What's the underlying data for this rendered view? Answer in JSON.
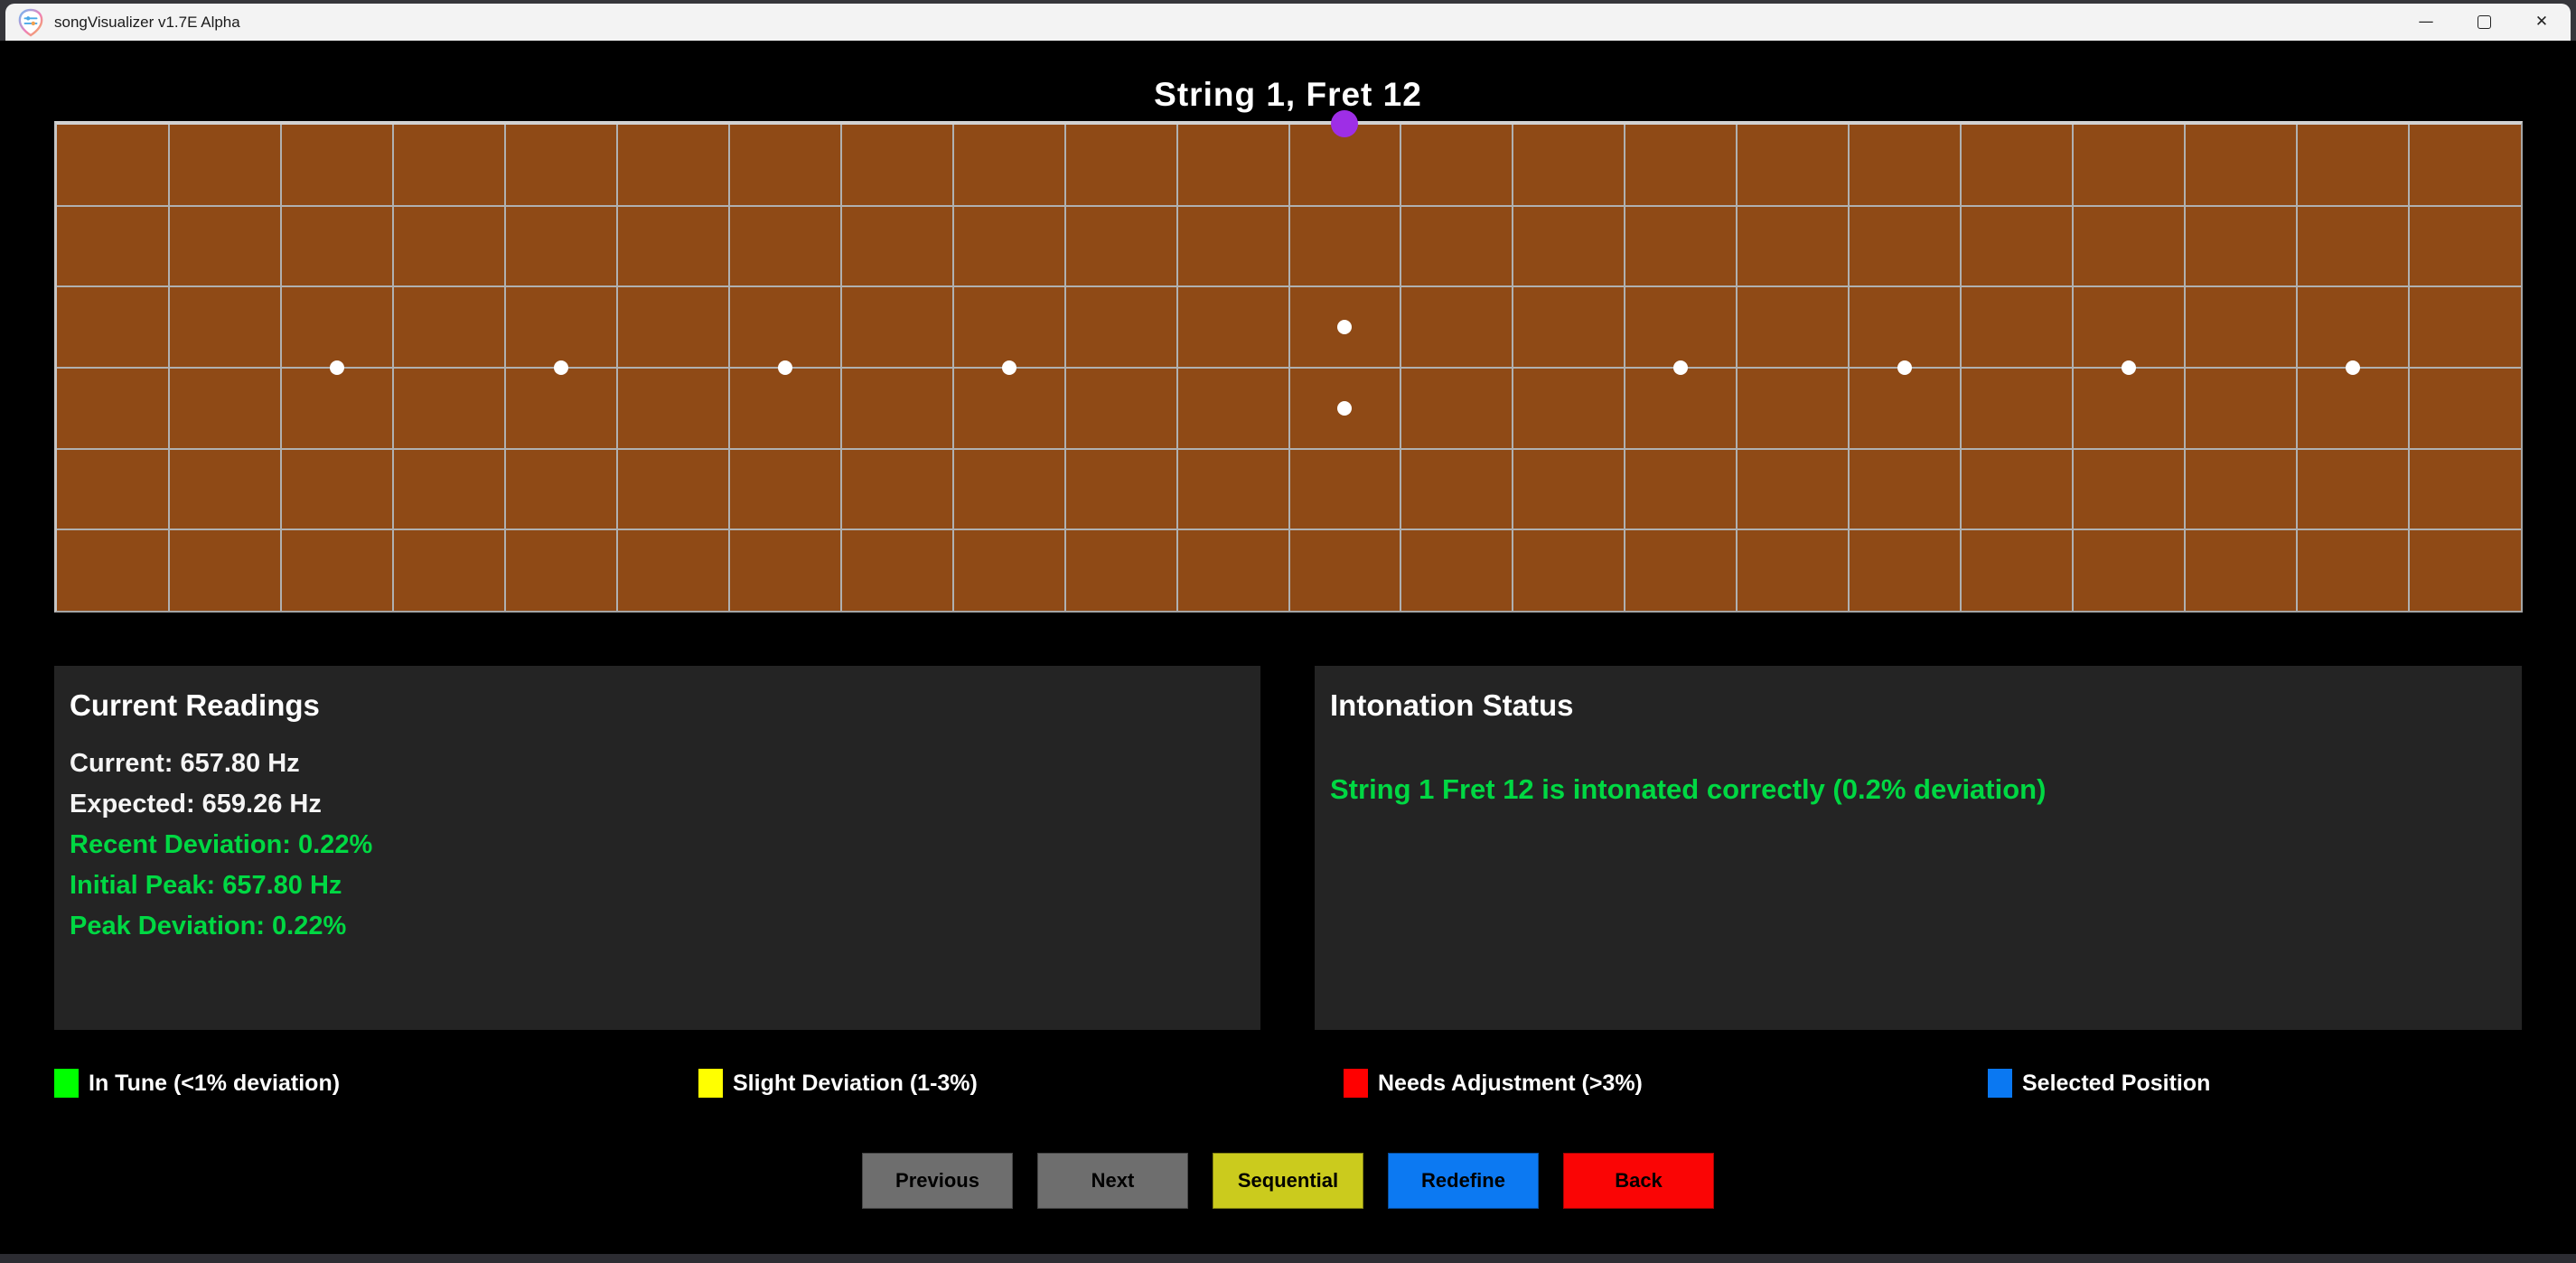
{
  "window": {
    "title": "songVisualizer v1.7E Alpha",
    "controls": {
      "minimize_glyph": "—",
      "close_glyph": "✕"
    }
  },
  "header": {
    "title": "String 1, Fret 12"
  },
  "fretboard": {
    "fret_count": 22,
    "string_count": 6,
    "board_color": "#8f4a16",
    "grid_line_color": "#b0b0b0",
    "marker_dot_color": "#ffffff",
    "single_marker_frets": [
      3,
      5,
      7,
      9,
      15,
      17,
      19,
      21
    ],
    "double_marker_fret": 12,
    "selected_position": {
      "string": 1,
      "fret": 12,
      "dot_color": "#9e2ee6"
    }
  },
  "panels": {
    "current_readings": {
      "title": "Current Readings",
      "lines": [
        {
          "text": "Current: 657.80 Hz",
          "color": "#f5f5f5"
        },
        {
          "text": "Expected: 659.26 Hz",
          "color": "#f5f5f5"
        },
        {
          "text": "Recent Deviation: 0.22%",
          "color": "#00d843"
        },
        {
          "text": "Initial Peak: 657.80 Hz",
          "color": "#00d843"
        },
        {
          "text": "Peak Deviation: 0.22%",
          "color": "#00d843"
        }
      ]
    },
    "intonation_status": {
      "title": "Intonation Status",
      "status_text": "String 1 Fret 12 is intonated correctly (0.2% deviation)",
      "status_color": "#00d843"
    }
  },
  "legend": {
    "items": [
      {
        "icon": "in-tune-swatch",
        "color": "#00ff00",
        "label": "In Tune (<1% deviation)"
      },
      {
        "icon": "slight-deviation-swatch",
        "color": "#ffff00",
        "label": "Slight Deviation (1-3%)"
      },
      {
        "icon": "needs-adjustment-swatch",
        "color": "#ff0000",
        "label": "Needs Adjustment (>3%)"
      },
      {
        "icon": "selected-position-swatch",
        "color": "#0a78f2",
        "label": "Selected Position"
      }
    ]
  },
  "buttons": [
    {
      "name": "previous-button",
      "label": "Previous",
      "color": "#6e6e6e"
    },
    {
      "name": "next-button",
      "label": "Next",
      "color": "#6e6e6e"
    },
    {
      "name": "sequential-button",
      "label": "Sequential",
      "color": "#cbcb1d"
    },
    {
      "name": "redefine-button",
      "label": "Redefine",
      "color": "#0c79f2"
    },
    {
      "name": "back-button",
      "label": "Back",
      "color": "#fa0505"
    }
  ]
}
